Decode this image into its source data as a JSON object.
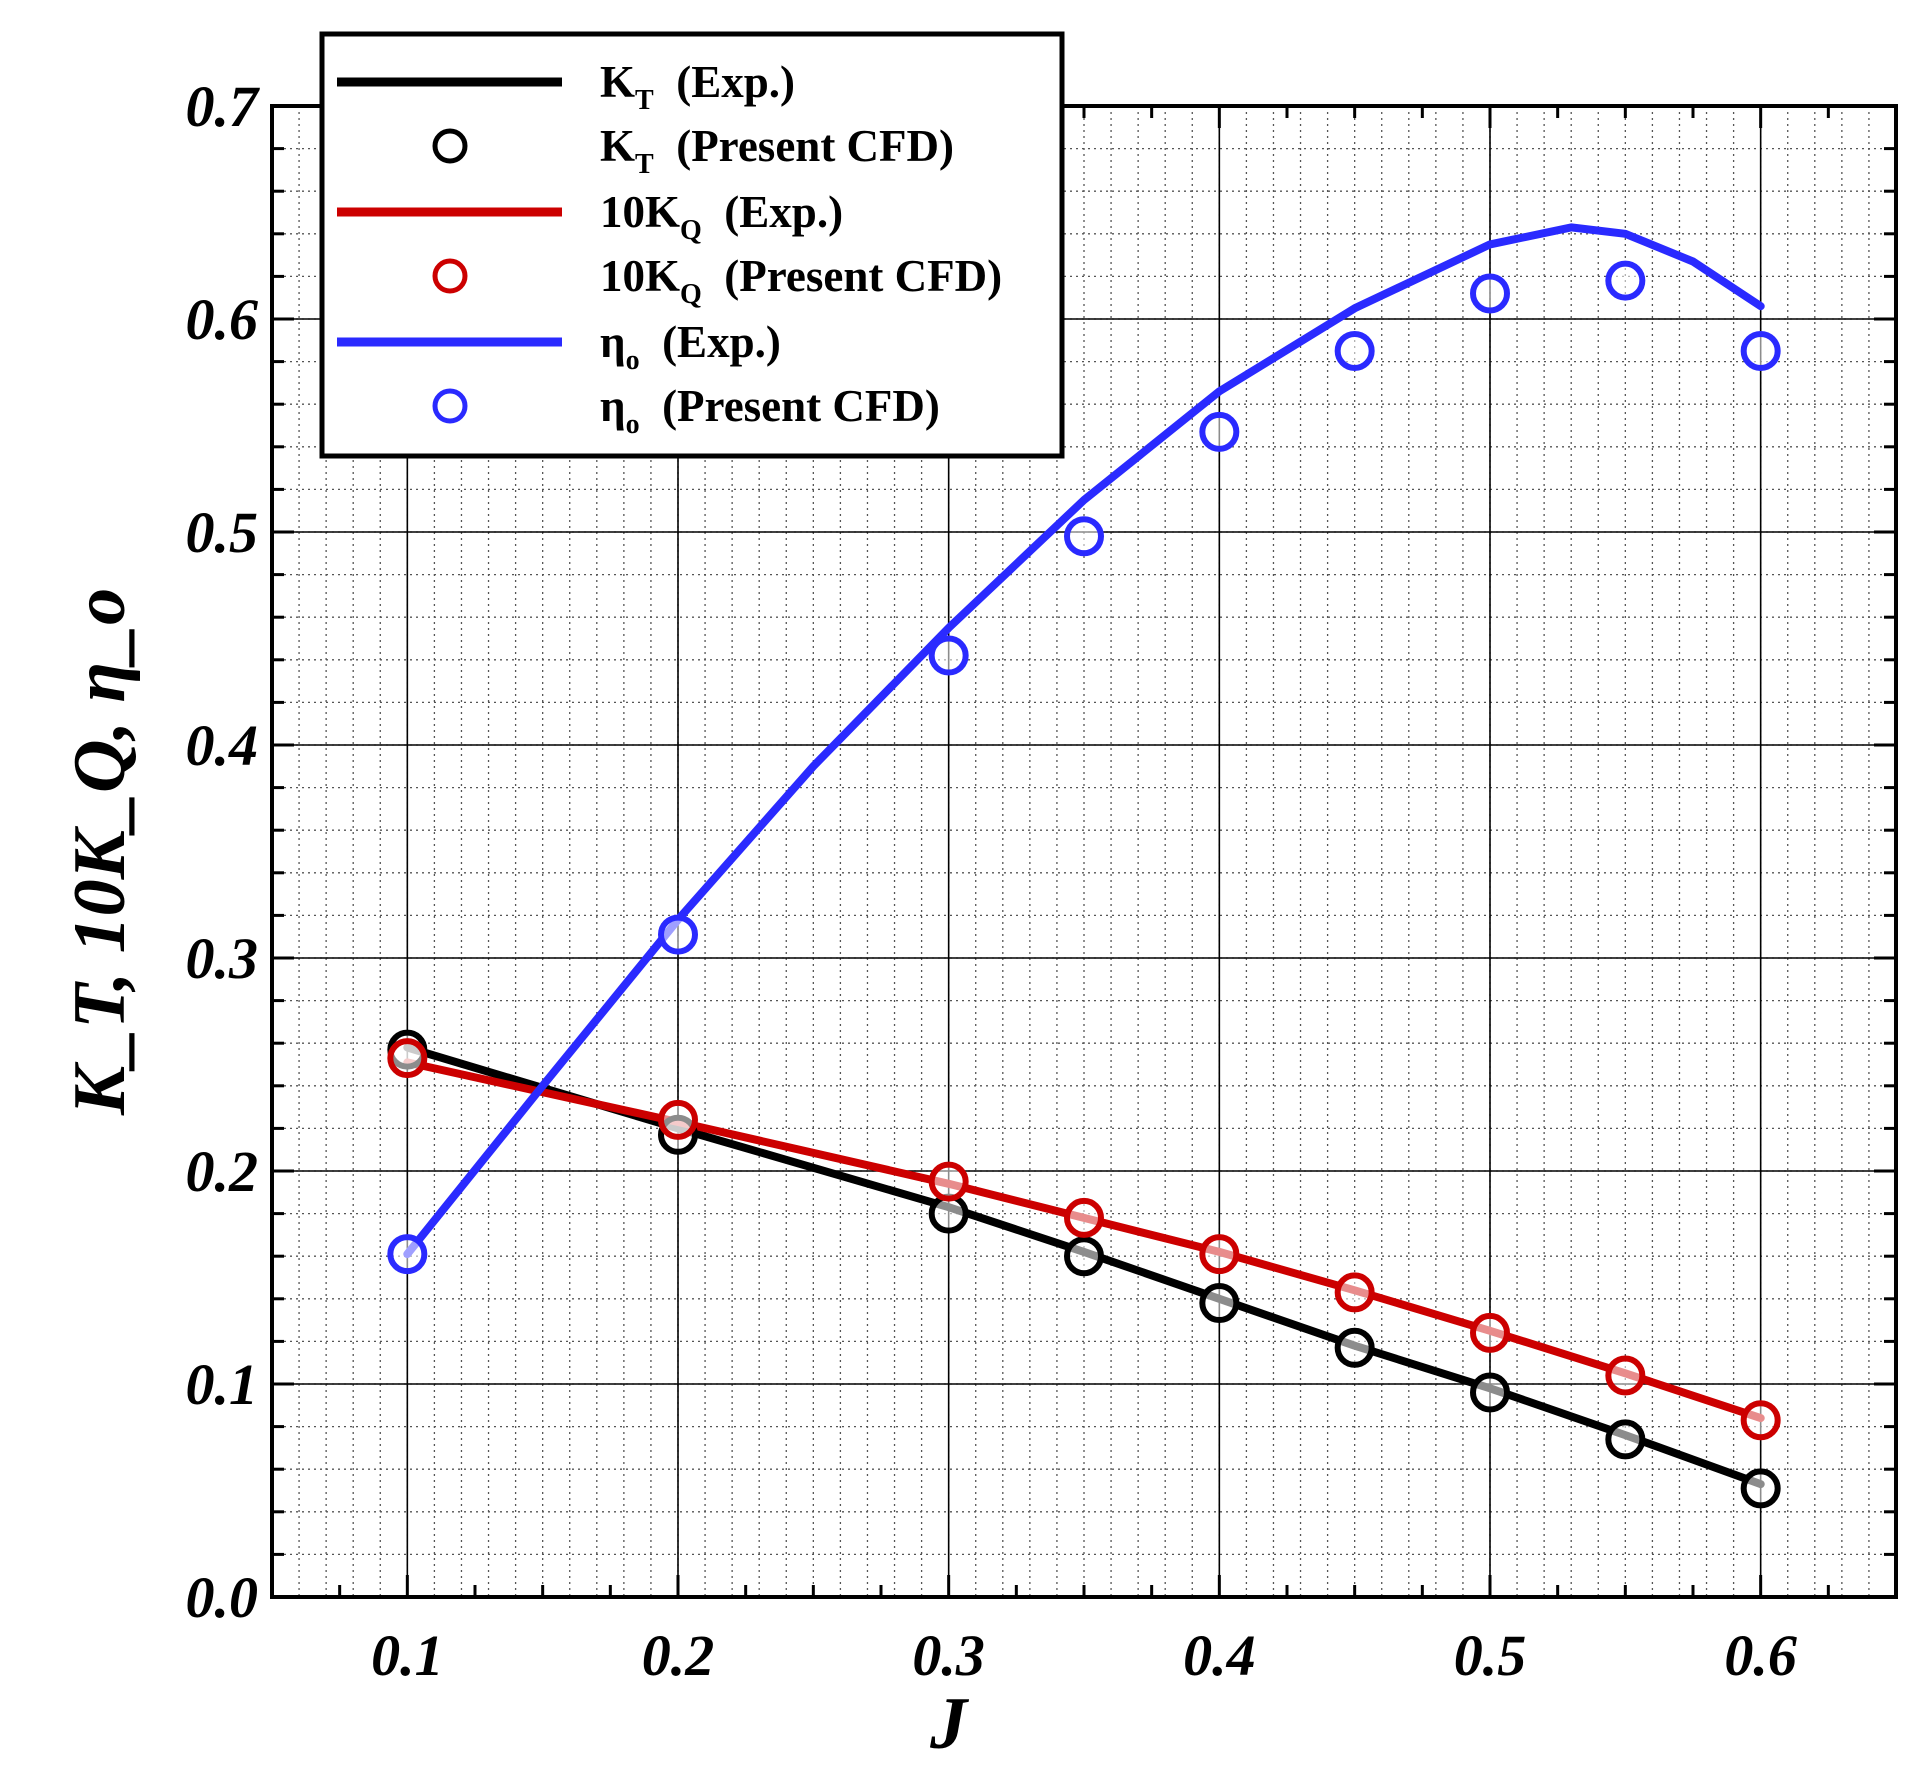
{
  "chart_data": {
    "type": "line",
    "xlabel": "J",
    "ylabel": "K_T, 10K_Q, η_o",
    "xlim": [
      0.05,
      0.65
    ],
    "ylim": [
      0.0,
      0.7
    ],
    "xticks": [
      "0.1",
      "0.2",
      "0.3",
      "0.4",
      "0.5",
      "0.6"
    ],
    "yticks": [
      "0.0",
      "0.1",
      "0.2",
      "0.3",
      "0.4",
      "0.5",
      "0.6",
      "0.7"
    ],
    "grid": true,
    "legend_position": "top-left",
    "colors": {
      "kt": "#000000",
      "kq": "#cc0000",
      "eta": "#2a2aff"
    },
    "series": [
      {
        "name": "K_T (Exp.)",
        "legend": {
          "main": "K",
          "sub": "T",
          "rest": "(Exp.)"
        },
        "style": "line",
        "color": "#000000",
        "x": [
          0.1,
          0.2,
          0.3,
          0.35,
          0.4,
          0.45,
          0.5,
          0.55,
          0.6
        ],
        "y": [
          0.258,
          0.22,
          0.183,
          0.162,
          0.14,
          0.118,
          0.098,
          0.076,
          0.053
        ]
      },
      {
        "name": "K_T (Present CFD)",
        "legend": {
          "main": "K",
          "sub": "T",
          "rest": "(Present CFD)"
        },
        "style": "marker",
        "color": "#000000",
        "x": [
          0.1,
          0.2,
          0.3,
          0.35,
          0.4,
          0.45,
          0.5,
          0.55,
          0.6
        ],
        "y": [
          0.257,
          0.217,
          0.18,
          0.16,
          0.138,
          0.117,
          0.096,
          0.074,
          0.051
        ]
      },
      {
        "name": "10K_Q (Exp.)",
        "legend": {
          "main": "10K",
          "sub": "Q",
          "rest": "(Exp.)"
        },
        "style": "line",
        "color": "#cc0000",
        "x": [
          0.1,
          0.2,
          0.3,
          0.35,
          0.4,
          0.45,
          0.5,
          0.55,
          0.6
        ],
        "y": [
          0.251,
          0.223,
          0.194,
          0.178,
          0.162,
          0.144,
          0.125,
          0.105,
          0.084
        ]
      },
      {
        "name": "10K_Q (Present CFD)",
        "legend": {
          "main": "10K",
          "sub": "Q",
          "rest": "(Present CFD)"
        },
        "style": "marker",
        "color": "#cc0000",
        "x": [
          0.1,
          0.2,
          0.3,
          0.35,
          0.4,
          0.45,
          0.5,
          0.55,
          0.6
        ],
        "y": [
          0.253,
          0.224,
          0.195,
          0.178,
          0.161,
          0.143,
          0.124,
          0.104,
          0.083
        ]
      },
      {
        "name": "η_o (Exp.)",
        "legend": {
          "main": "η",
          "sub": "o",
          "rest": "(Exp.)"
        },
        "style": "line",
        "color": "#2a2aff",
        "x": [
          0.1,
          0.15,
          0.2,
          0.25,
          0.3,
          0.35,
          0.4,
          0.45,
          0.5,
          0.53,
          0.55,
          0.575,
          0.6
        ],
        "y": [
          0.161,
          0.24,
          0.318,
          0.39,
          0.455,
          0.515,
          0.566,
          0.605,
          0.635,
          0.643,
          0.64,
          0.627,
          0.606
        ]
      },
      {
        "name": "η_o (Present CFD)",
        "legend": {
          "main": "η",
          "sub": "o",
          "rest": "(Present CFD)"
        },
        "style": "marker",
        "color": "#2a2aff",
        "x": [
          0.1,
          0.2,
          0.3,
          0.35,
          0.4,
          0.45,
          0.5,
          0.55,
          0.6
        ],
        "y": [
          0.161,
          0.311,
          0.442,
          0.498,
          0.547,
          0.585,
          0.612,
          0.618,
          0.585
        ]
      }
    ]
  }
}
